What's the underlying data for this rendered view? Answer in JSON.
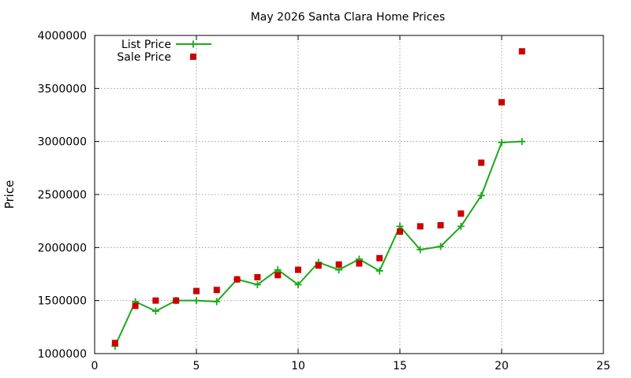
{
  "chart_data": {
    "type": "line",
    "title": "May 2026 Santa Clara Home Prices",
    "xlabel": "",
    "ylabel": "Price",
    "xlim": [
      0,
      25
    ],
    "ylim": [
      1000000,
      4000000
    ],
    "x_ticks": [
      0,
      5,
      10,
      15,
      20,
      25
    ],
    "y_ticks": [
      1000000,
      1500000,
      2000000,
      2500000,
      3000000,
      3500000,
      4000000
    ],
    "grid": true,
    "legend_placement": "top-left",
    "series": [
      {
        "name": "List Price",
        "style": "lines+crosses",
        "color": "#1aaa1a",
        "x": [
          1,
          2,
          3,
          4,
          5,
          6,
          7,
          8,
          9,
          10,
          11,
          12,
          13,
          14,
          15,
          16,
          17,
          18,
          19,
          20,
          21
        ],
        "y": [
          1070000,
          1490000,
          1400000,
          1500000,
          1500000,
          1490000,
          1700000,
          1650000,
          1790000,
          1650000,
          1860000,
          1790000,
          1890000,
          1780000,
          2200000,
          1980000,
          2010000,
          2200000,
          2490000,
          2990000,
          3000000
        ]
      },
      {
        "name": "Sale Price",
        "style": "points",
        "color": "#cc0000",
        "x": [
          1,
          2,
          3,
          4,
          5,
          6,
          7,
          8,
          9,
          10,
          11,
          12,
          13,
          14,
          15,
          16,
          17,
          18,
          19,
          20,
          21
        ],
        "y": [
          1100000,
          1450000,
          1500000,
          1500000,
          1590000,
          1600000,
          1700000,
          1720000,
          1740000,
          1790000,
          1830000,
          1840000,
          1850000,
          1900000,
          2150000,
          2200000,
          2210000,
          2320000,
          2800000,
          3370000,
          3850000
        ]
      }
    ]
  }
}
